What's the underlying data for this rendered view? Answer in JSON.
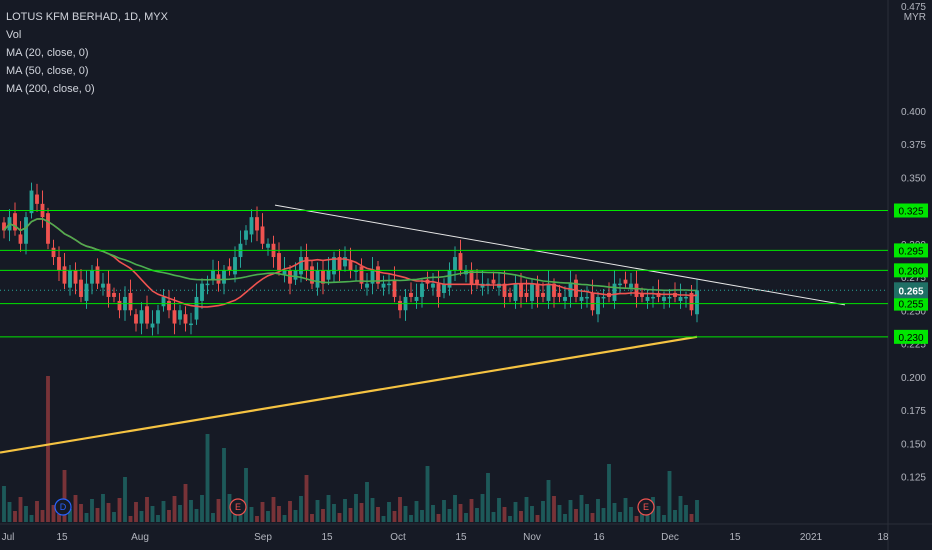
{
  "header": {
    "title": "LOTUS KFM BERHAD, 1D, MYX",
    "indicators": [
      "Vol",
      "MA (20, close, 0)",
      "MA (50, close, 0)",
      "MA (200, close, 0)"
    ]
  },
  "axis": {
    "currency": "MYR",
    "top_tick": "0.475"
  },
  "chart_data": {
    "type": "candlestick",
    "title": "LOTUS KFM BERHAD, 1D, MYX",
    "y_axis": {
      "range": [
        0.115,
        0.48
      ],
      "ticks": [
        "0.400",
        "0.375",
        "0.350",
        "0.300",
        "0.275",
        "0.250",
        "0.225",
        "0.200",
        "0.175",
        "0.150",
        "0.125"
      ],
      "unit": "MYR"
    },
    "x_axis": {
      "ticks": [
        "Jul",
        "15",
        "Aug",
        "Sep",
        "15",
        "Oct",
        "15",
        "Nov",
        "16",
        "Dec",
        "15",
        "2021",
        "18"
      ]
    },
    "horizontal_levels": [
      "0.325",
      "0.295",
      "0.280",
      "0.255",
      "0.230"
    ],
    "current_price": "0.265",
    "trendline": {
      "from": [
        0.329,
        "early Sep"
      ],
      "to": [
        0.255,
        "late Dec"
      ]
    },
    "moving_averages": [
      {
        "name": "MA (20, close, 0)",
        "color": "#f05350"
      },
      {
        "name": "MA (50, close, 0)",
        "color": "#4caf50"
      },
      {
        "name": "MA (200, close, 0)",
        "color": "#f5c342"
      }
    ],
    "events": [
      "D",
      "E",
      "E"
    ],
    "series_closes": [
      0.31,
      0.32,
      0.31,
      0.3,
      0.32,
      0.34,
      0.33,
      0.32,
      0.3,
      0.29,
      0.28,
      0.27,
      0.28,
      0.27,
      0.26,
      0.27,
      0.28,
      0.27,
      0.27,
      0.26,
      0.26,
      0.25,
      0.26,
      0.25,
      0.24,
      0.25,
      0.24,
      0.24,
      0.25,
      0.26,
      0.25,
      0.24,
      0.25,
      0.24,
      0.24,
      0.26,
      0.27,
      0.27,
      0.28,
      0.27,
      0.28,
      0.28,
      0.29,
      0.3,
      0.31,
      0.32,
      0.31,
      0.3,
      0.3,
      0.29,
      0.28,
      0.28,
      0.27,
      0.28,
      0.29,
      0.28,
      0.27,
      0.28,
      0.27,
      0.28,
      0.29,
      0.28,
      0.29,
      0.28,
      0.28,
      0.27,
      0.27,
      0.28,
      0.27,
      0.27,
      0.27,
      0.26,
      0.25,
      0.26,
      0.26,
      0.26,
      0.27,
      0.27,
      0.27,
      0.26,
      0.27,
      0.28,
      0.29,
      0.28,
      0.28,
      0.27,
      0.27,
      0.27,
      0.27,
      0.27,
      0.27,
      0.26,
      0.26,
      0.27,
      0.26,
      0.26,
      0.27,
      0.26,
      0.26,
      0.27,
      0.26,
      0.26,
      0.26,
      0.27,
      0.26,
      0.26,
      0.26,
      0.25,
      0.26,
      0.26,
      0.26,
      0.27,
      0.27,
      0.27,
      0.27,
      0.26,
      0.26,
      0.26,
      0.26,
      0.26,
      0.26,
      0.26,
      0.26,
      0.26,
      0.26,
      0.25,
      0.265
    ]
  },
  "colors": {
    "background": "#161a25",
    "up": "#26a69a",
    "down": "#ef5350",
    "level_line": "#00e600",
    "level_label_bg": "#00e600",
    "trendline": "#e6e6e6",
    "current_price_bg": "#1f6f65"
  }
}
